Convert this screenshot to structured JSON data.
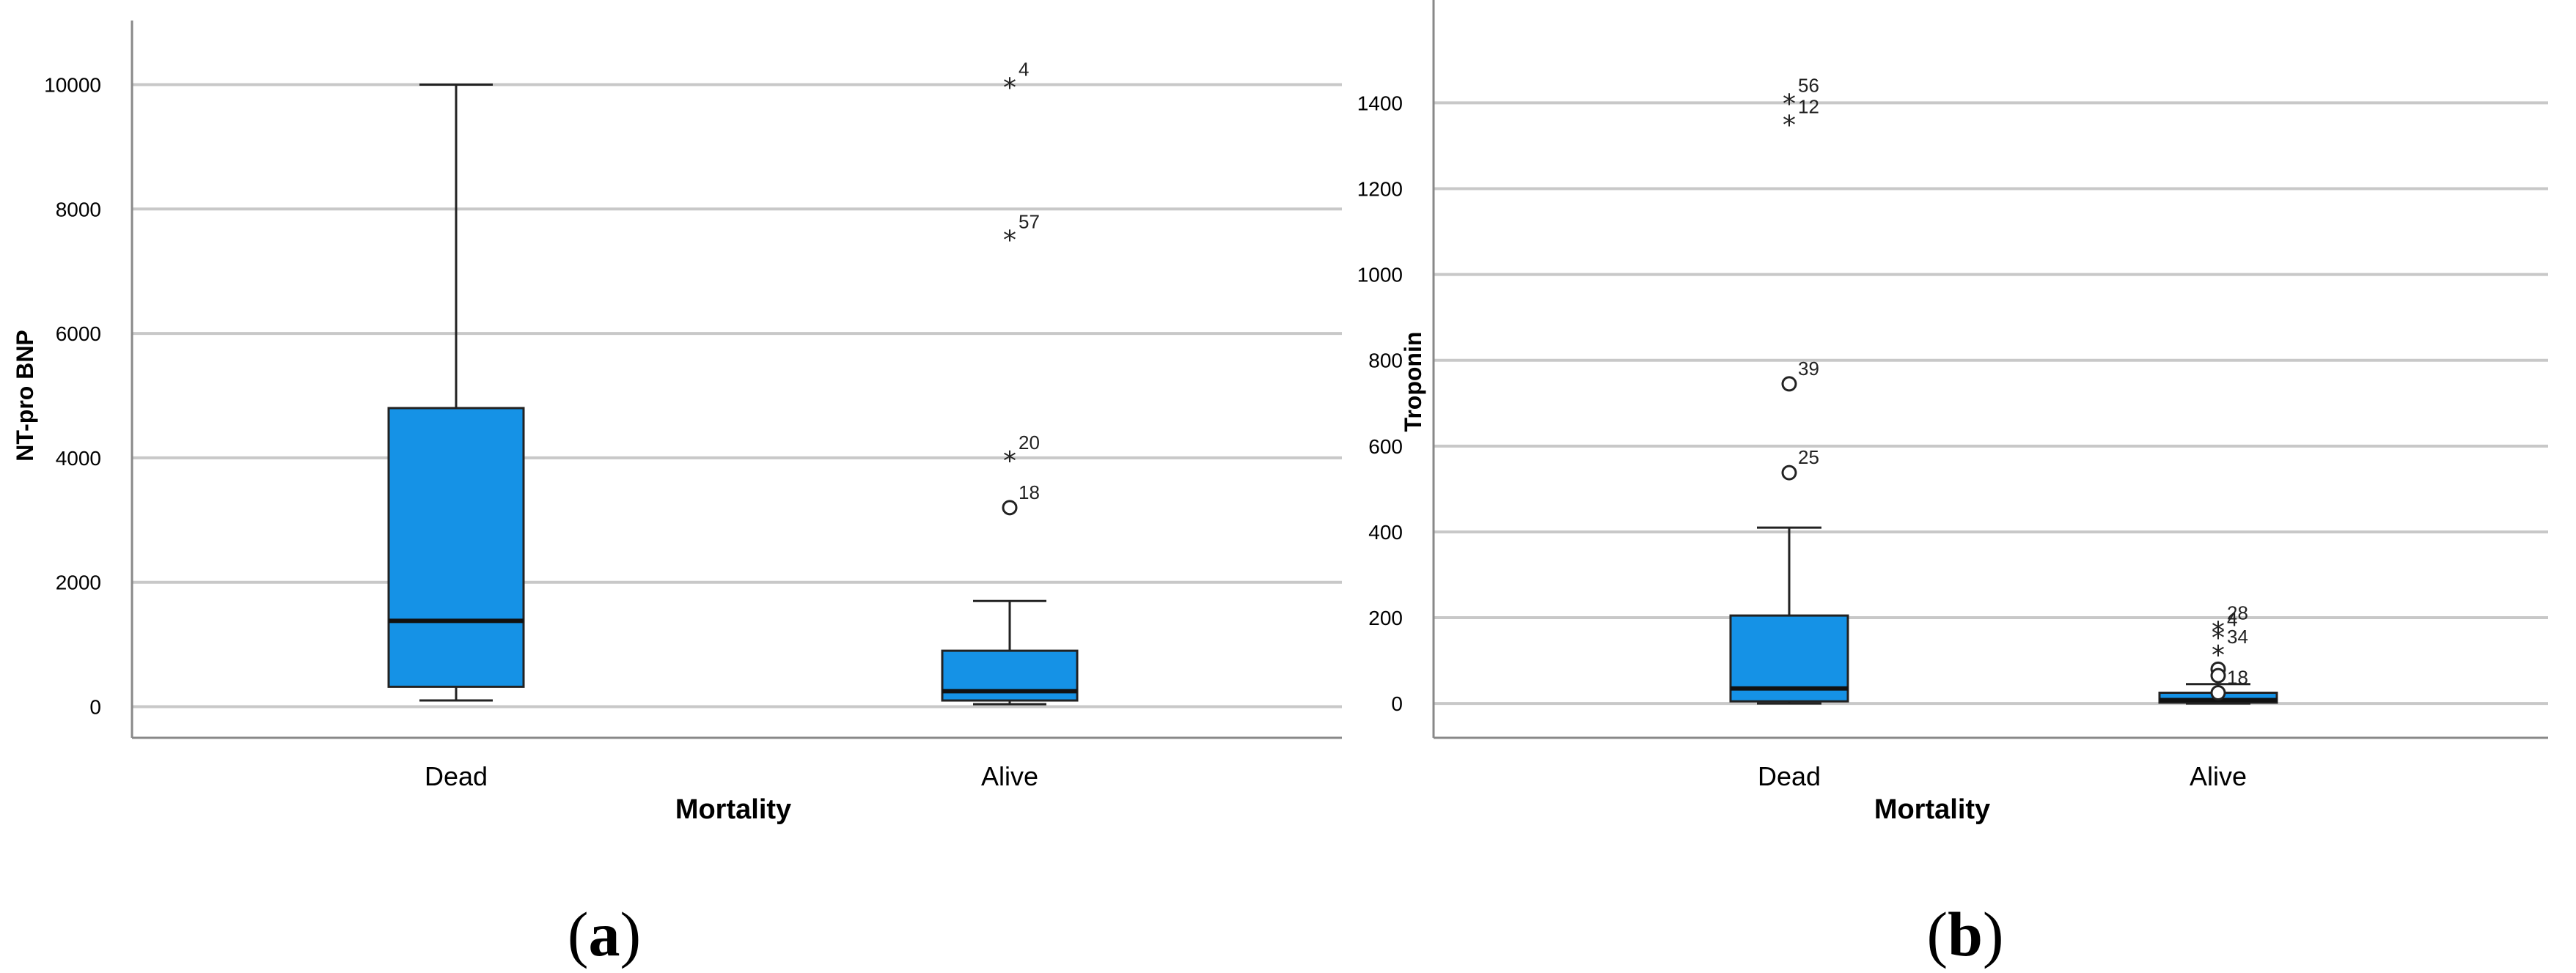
{
  "colors": {
    "box_fill": "#1592E6",
    "box_stroke": "#222222",
    "grid": "#C8C8C8",
    "axis": "#888888"
  },
  "chart_data": [
    {
      "type": "boxplot",
      "panel_label_open": "(",
      "panel_label": "a",
      "panel_label_close": ")",
      "xlabel": "Mortality",
      "ylabel": "NT-pro BNP",
      "categories": [
        "Dead",
        "Alive"
      ],
      "ylim": [
        -500,
        10500
      ],
      "yticks": [
        0,
        2000,
        4000,
        6000,
        8000,
        10000
      ],
      "grid": true,
      "boxes": [
        {
          "category": "Dead",
          "whisker_low": 100,
          "q1": 320,
          "median": 1380,
          "q3": 4800,
          "whisker_high": 10000,
          "outliers": []
        },
        {
          "category": "Alive",
          "whisker_low": 40,
          "q1": 100,
          "median": 250,
          "q3": 900,
          "whisker_high": 1700,
          "outliers": [
            {
              "value": 10000,
              "label": "4",
              "marker": "*"
            },
            {
              "value": 7550,
              "label": "57",
              "marker": "*"
            },
            {
              "value": 4000,
              "label": "20",
              "marker": "*"
            },
            {
              "value": 3200,
              "label": "18",
              "marker": "o"
            }
          ]
        }
      ]
    },
    {
      "type": "boxplot",
      "panel_label_open": "(",
      "panel_label": "b",
      "panel_label_close": ")",
      "xlabel": "Mortality",
      "ylabel": "Troponin",
      "categories": [
        "Dead",
        "Alive"
      ],
      "ylim": [
        -80,
        1580
      ],
      "yticks": [
        0,
        200,
        400,
        600,
        800,
        1000,
        1200,
        1400
      ],
      "grid": true,
      "boxes": [
        {
          "category": "Dead",
          "whisker_low": 0,
          "q1": 5,
          "median": 35,
          "q3": 205,
          "whisker_high": 410,
          "outliers": [
            {
              "value": 1405,
              "label": "56",
              "marker": "*"
            },
            {
              "value": 1355,
              "label": "12",
              "marker": "*"
            },
            {
              "value": 745,
              "label": "39",
              "marker": "o"
            },
            {
              "value": 538,
              "label": "25",
              "marker": "o"
            }
          ]
        },
        {
          "category": "Alive",
          "whisker_low": 0,
          "q1": 2,
          "median": 8,
          "q3": 25,
          "whisker_high": 45,
          "outliers": [
            {
              "value": 175,
              "label": "28",
              "marker": "*"
            },
            {
              "value": 160,
              "label": "4",
              "marker": "*"
            },
            {
              "value": 120,
              "label": "34",
              "marker": "*"
            },
            {
              "value": 80,
              "label": "",
              "marker": "o"
            },
            {
              "value": 65,
              "label": "",
              "marker": "o"
            },
            {
              "value": 25,
              "label": "18",
              "marker": "o"
            }
          ]
        }
      ]
    }
  ]
}
